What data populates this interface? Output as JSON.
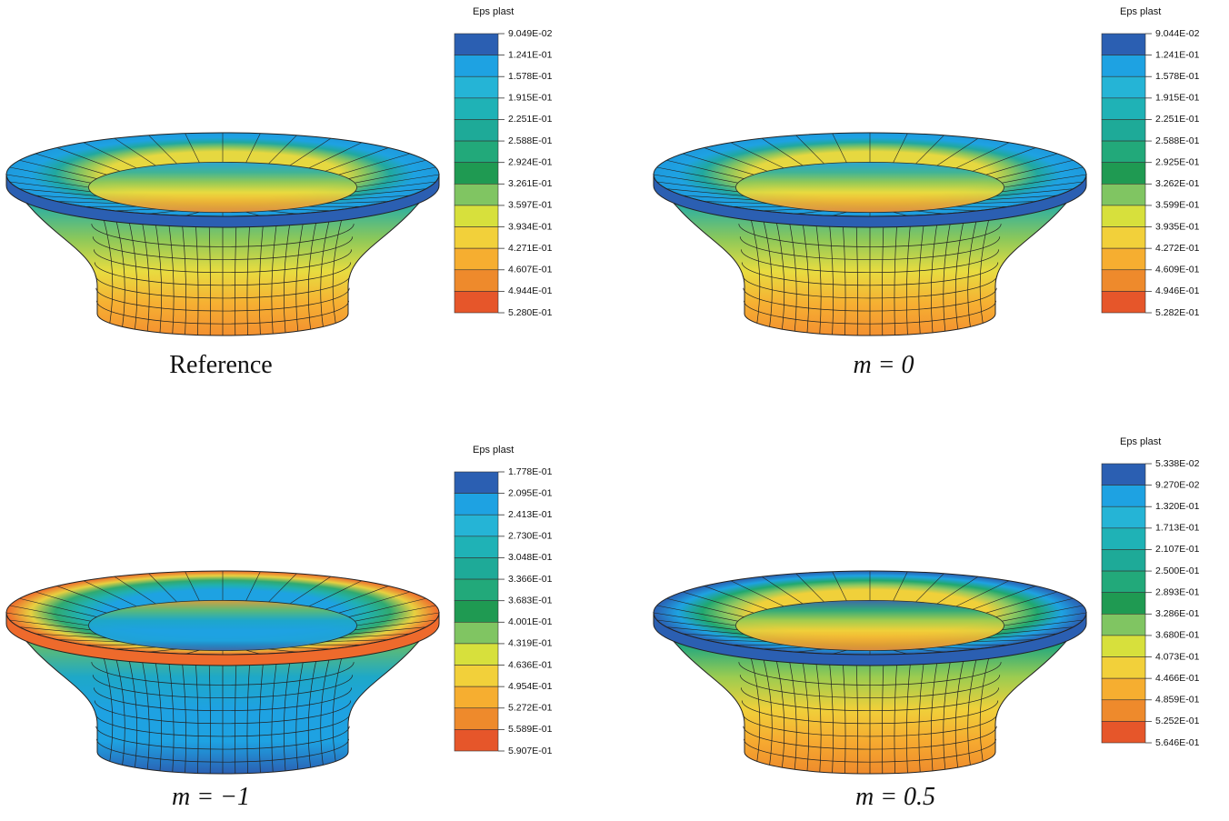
{
  "panels": [
    {
      "caption": "Reference",
      "legend": {
        "title": "Eps plast",
        "labels": [
          "9.049E-02",
          "1.241E-01",
          "1.578E-01",
          "1.915E-01",
          "2.251E-01",
          "2.588E-01",
          "2.924E-01",
          "3.261E-01",
          "3.597E-01",
          "3.934E-01",
          "4.271E-01",
          "4.607E-01",
          "4.944E-01",
          "5.280E-01"
        ]
      }
    },
    {
      "caption": "m = 0",
      "legend": {
        "title": "Eps plast",
        "labels": [
          "9.044E-02",
          "1.241E-01",
          "1.578E-01",
          "1.915E-01",
          "2.251E-01",
          "2.588E-01",
          "2.925E-01",
          "3.262E-01",
          "3.599E-01",
          "3.935E-01",
          "4.272E-01",
          "4.609E-01",
          "4.946E-01",
          "5.282E-01"
        ]
      }
    },
    {
      "caption": "m = −1",
      "legend": {
        "title": "Eps plast",
        "labels": [
          "1.778E-01",
          "2.095E-01",
          "2.413E-01",
          "2.730E-01",
          "3.048E-01",
          "3.366E-01",
          "3.683E-01",
          "4.001E-01",
          "4.319E-01",
          "4.636E-01",
          "4.954E-01",
          "5.272E-01",
          "5.589E-01",
          "5.907E-01"
        ]
      }
    },
    {
      "caption": "m = 0.5",
      "legend": {
        "title": "Eps plast",
        "labels": [
          "5.338E-02",
          "9.270E-02",
          "1.320E-01",
          "1.713E-01",
          "2.107E-01",
          "2.500E-01",
          "2.893E-01",
          "3.286E-01",
          "3.680E-01",
          "4.073E-01",
          "4.466E-01",
          "4.859E-01",
          "5.252E-01",
          "5.646E-01"
        ]
      }
    }
  ]
}
